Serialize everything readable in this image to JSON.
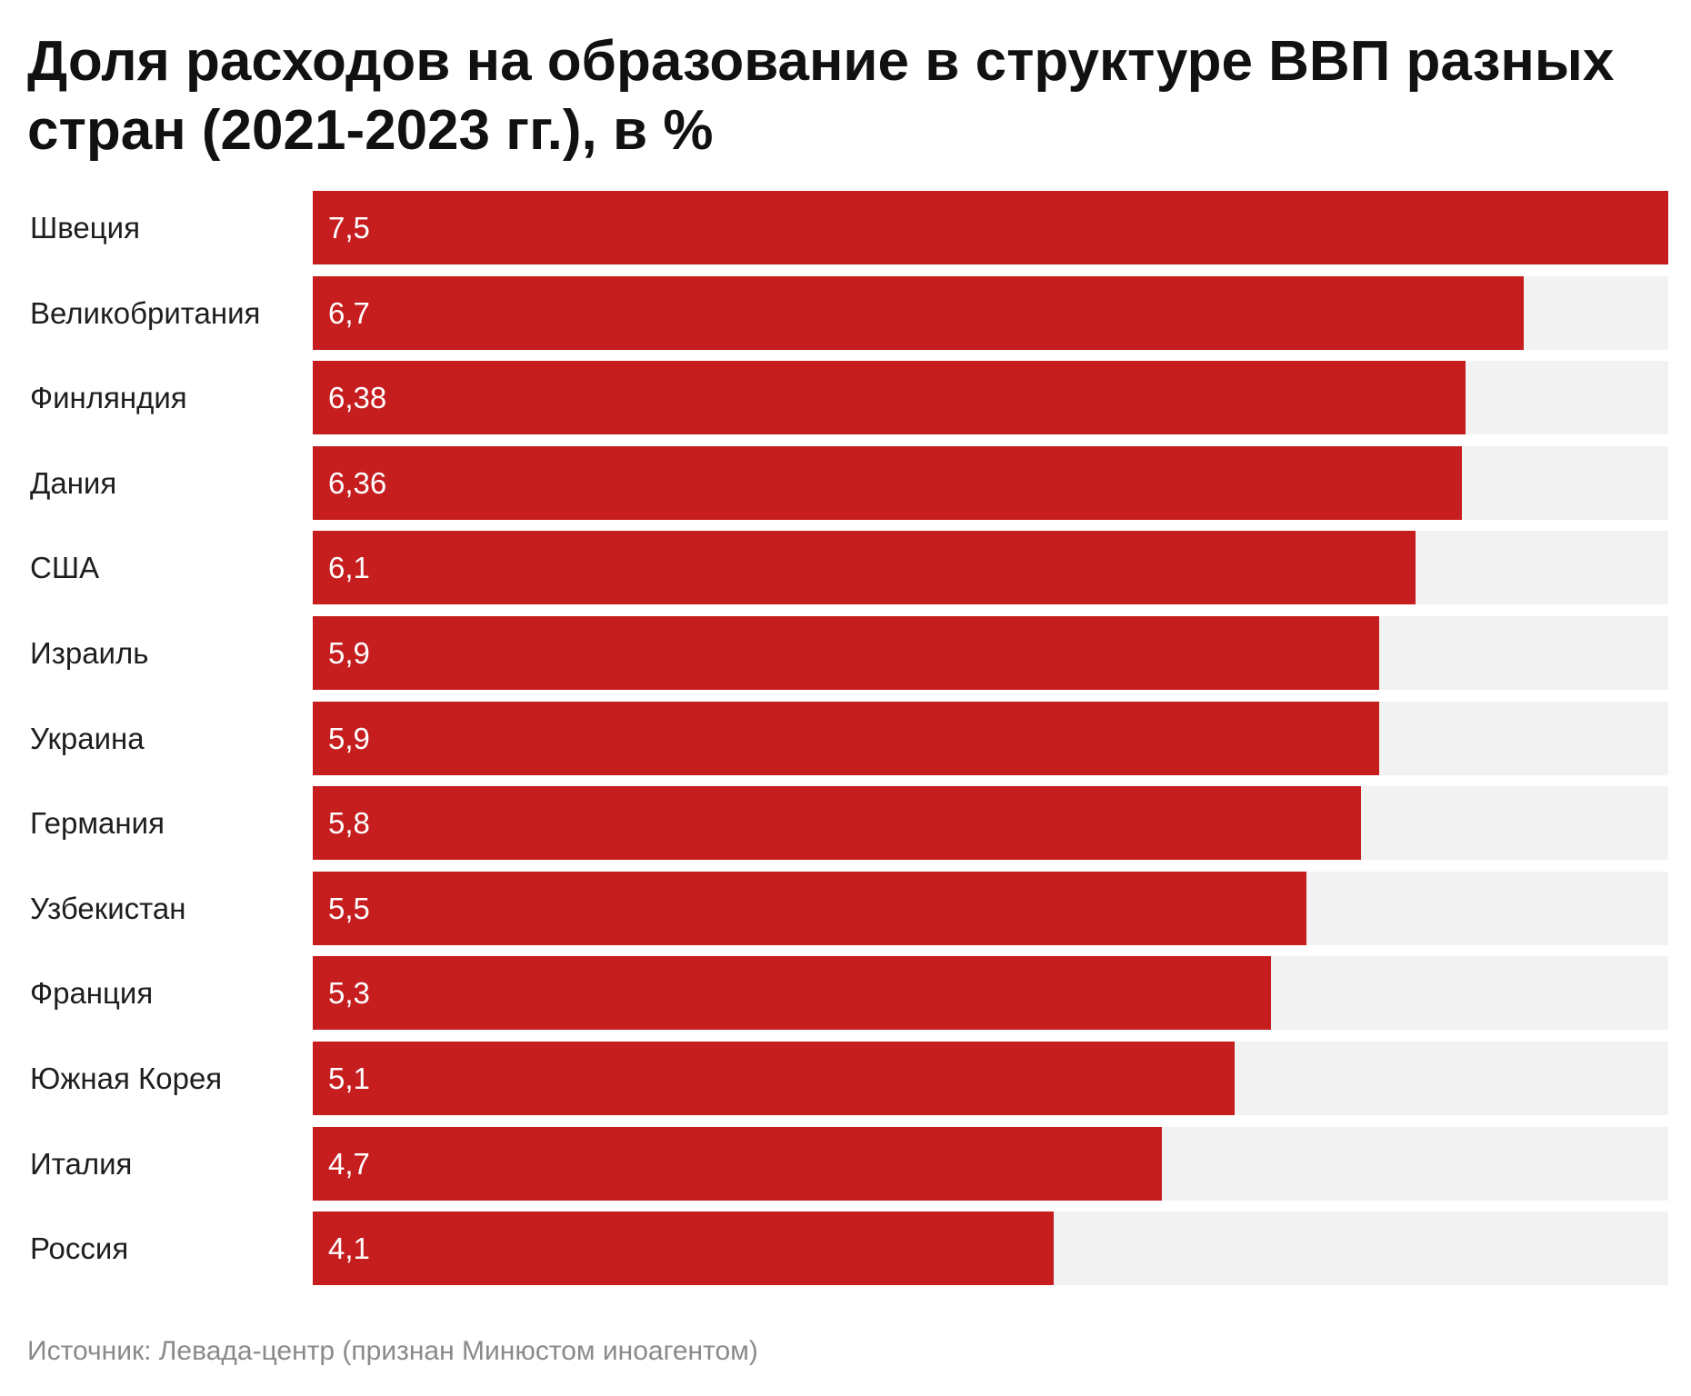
{
  "chart_data": {
    "type": "bar",
    "orientation": "horizontal",
    "title": "Доля расходов на образование в структуре ВВП разных стран (2021-2023 гг.), в %",
    "categories": [
      "Швеция",
      "Великобритания",
      "Финляндия",
      "Дания",
      "США",
      "Израиль",
      "Украина",
      "Германия",
      "Узбекистан",
      "Франция",
      "Южная Корея",
      "Италия",
      "Россия"
    ],
    "values": [
      7.5,
      6.7,
      6.38,
      6.36,
      6.1,
      5.9,
      5.9,
      5.8,
      5.5,
      5.3,
      5.1,
      4.7,
      4.1
    ],
    "value_labels": [
      "7,5",
      "6,7",
      "6,38",
      "6,36",
      "6,1",
      "5,9",
      "5,9",
      "5,8",
      "5,5",
      "5,3",
      "5,1",
      "4,7",
      "4,1"
    ],
    "xlim": [
      0,
      7.5
    ],
    "grid": false,
    "legend": "none",
    "bar_color": "#c61d1f",
    "track_color": "#f2f2f2",
    "source": "Источник: Левада-центр (признан Минюстом иноагентом)"
  }
}
